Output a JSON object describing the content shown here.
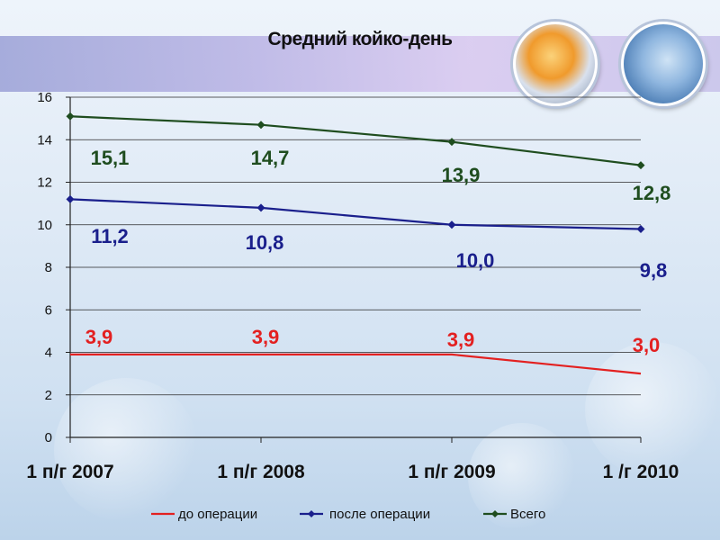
{
  "chart_data": {
    "type": "line",
    "title": "Средний койко-день",
    "categories": [
      "1 п/г 2007",
      "1 п/г 2008",
      "1 п/г 2009",
      "1 /г 2010"
    ],
    "ylim": [
      0,
      16
    ],
    "yticks": [
      "0",
      "2",
      "4",
      "6",
      "8",
      "10",
      "12",
      "14",
      "16"
    ],
    "grid": true,
    "legend_position": "bottom",
    "series": [
      {
        "name": "до операции",
        "color": "#e32020",
        "values": [
          3.9,
          3.9,
          3.9,
          3.0
        ],
        "labels": [
          "3,9",
          "3,9",
          "3,9",
          "3,0"
        ],
        "markers": false
      },
      {
        "name": "после операции",
        "color": "#1a1f8c",
        "values": [
          11.2,
          10.8,
          10.0,
          9.8
        ],
        "labels": [
          "11,2",
          "10,8",
          "10,0",
          "9,8"
        ],
        "markers": true
      },
      {
        "name": "Всего",
        "color": "#1f4d1f",
        "values": [
          15.1,
          14.7,
          13.9,
          12.8
        ],
        "labels": [
          "15,1",
          "14,7",
          "13,9",
          "12,8"
        ],
        "markers": true
      }
    ]
  },
  "icons": {
    "photo_left": "pills-photo-icon",
    "photo_right": "doctor-photo-icon"
  }
}
